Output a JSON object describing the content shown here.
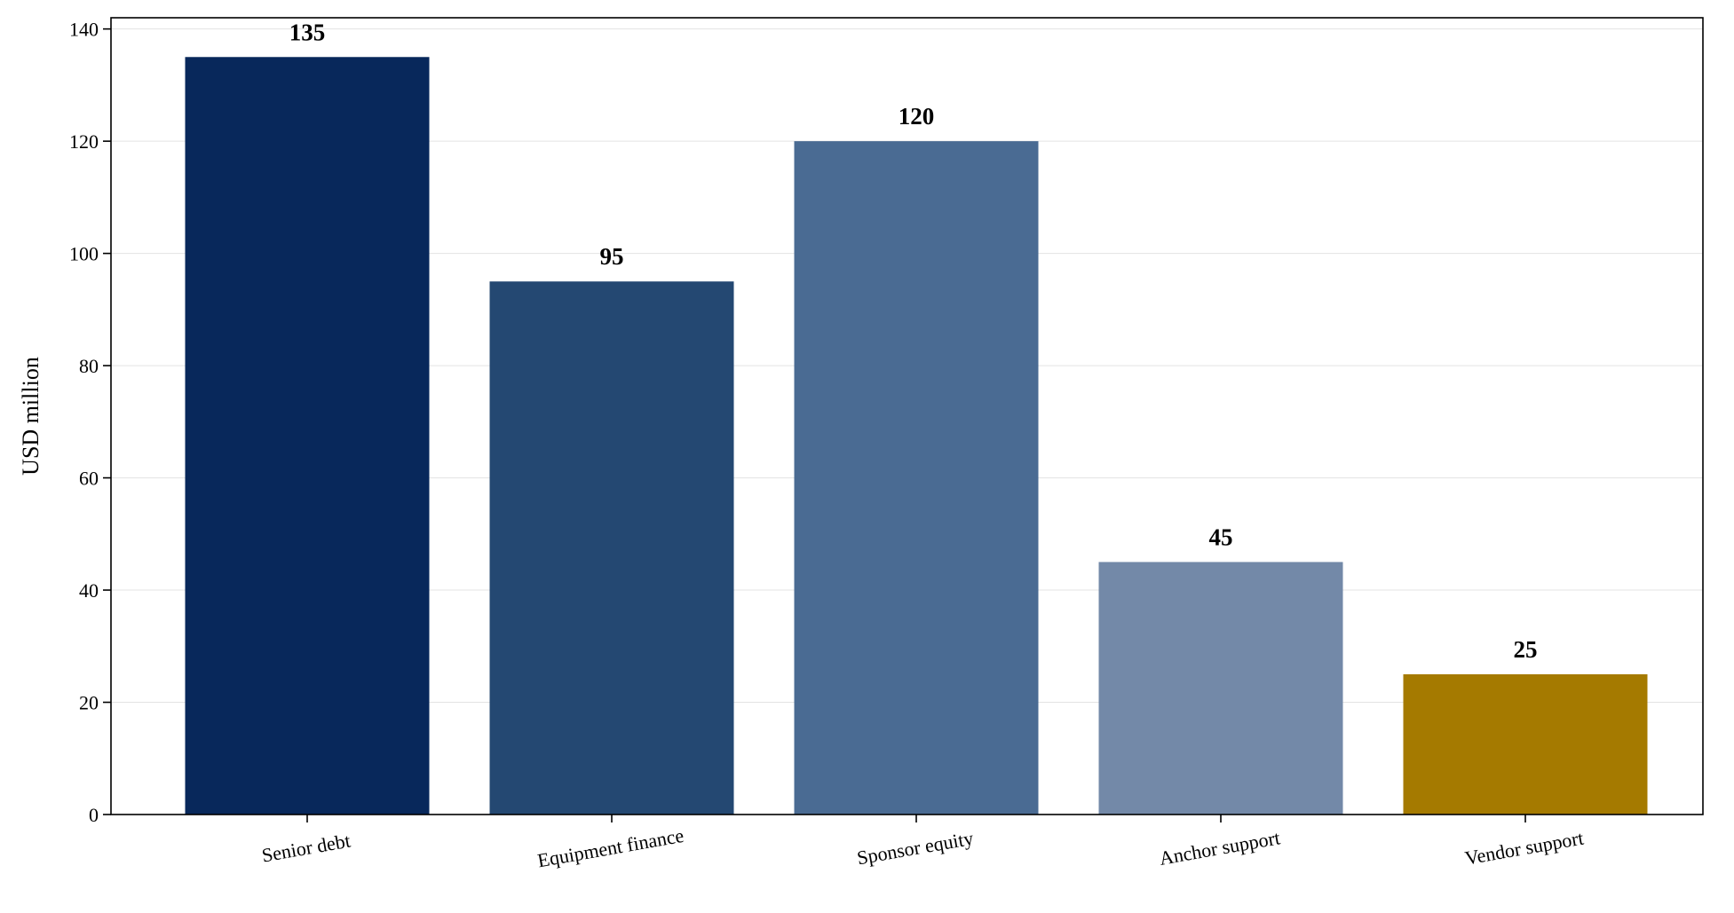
{
  "chart_data": {
    "type": "bar",
    "categories": [
      "Senior debt",
      "Equipment finance",
      "Sponsor equity",
      "Anchor support",
      "Vendor support"
    ],
    "values": [
      135,
      95,
      120,
      45,
      25
    ],
    "data_labels": [
      "135",
      "95",
      "120",
      "45",
      "25"
    ],
    "colors": [
      "#08285b",
      "#244872",
      "#4a6b93",
      "#7389a8",
      "#a57a00"
    ],
    "title": "",
    "xlabel": "",
    "ylabel": "USD million",
    "ylim": [
      0,
      142
    ],
    "yticks": [
      0,
      20,
      40,
      60,
      80,
      100,
      120,
      140
    ],
    "grid": "y-axis, light",
    "legend": "none"
  }
}
